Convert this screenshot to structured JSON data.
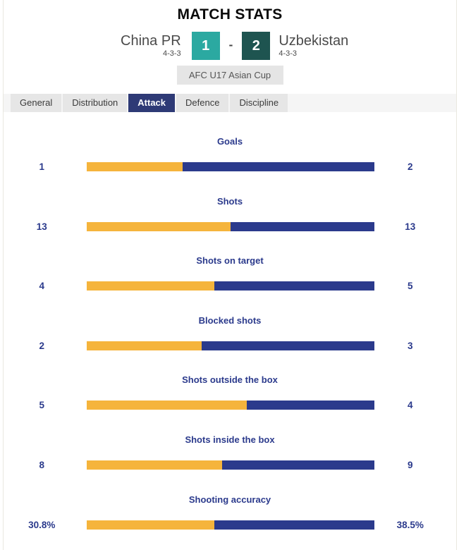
{
  "title": "MATCH STATS",
  "scoreboard": {
    "separator": "-",
    "home": {
      "name": "China PR",
      "formation": "4-3-3",
      "score": "1"
    },
    "away": {
      "name": "Uzbekistan",
      "formation": "4-3-3",
      "score": "2"
    }
  },
  "competition": "AFC U17 Asian Cup",
  "tabs": {
    "active": "Attack",
    "items": [
      {
        "label": "General"
      },
      {
        "label": "Distribution"
      },
      {
        "label": "Attack"
      },
      {
        "label": "Defence"
      },
      {
        "label": "Discipline"
      }
    ]
  },
  "stats": {
    "rows": [
      {
        "label": "Goals",
        "home": "1",
        "away": "2",
        "home_num": 1,
        "away_num": 2
      },
      {
        "label": "Shots",
        "home": "13",
        "away": "13",
        "home_num": 13,
        "away_num": 13
      },
      {
        "label": "Shots on target",
        "home": "4",
        "away": "5",
        "home_num": 4,
        "away_num": 5
      },
      {
        "label": "Blocked shots",
        "home": "2",
        "away": "3",
        "home_num": 2,
        "away_num": 3
      },
      {
        "label": "Shots outside the box",
        "home": "5",
        "away": "4",
        "home_num": 5,
        "away_num": 4
      },
      {
        "label": "Shots inside the box",
        "home": "8",
        "away": "9",
        "home_num": 8,
        "away_num": 9
      },
      {
        "label": "Shooting accuracy",
        "home": "30.8%",
        "away": "38.5%",
        "home_num": 30.8,
        "away_num": 38.5
      }
    ]
  },
  "colors": {
    "home_bar": "#f5b43c",
    "away_bar": "#2b3a8c",
    "home_score_bg": "#2ba9a1",
    "away_score_bg": "#1e5450",
    "active_tab_bg": "#2e3a76",
    "stat_text": "#2b3a8c"
  }
}
